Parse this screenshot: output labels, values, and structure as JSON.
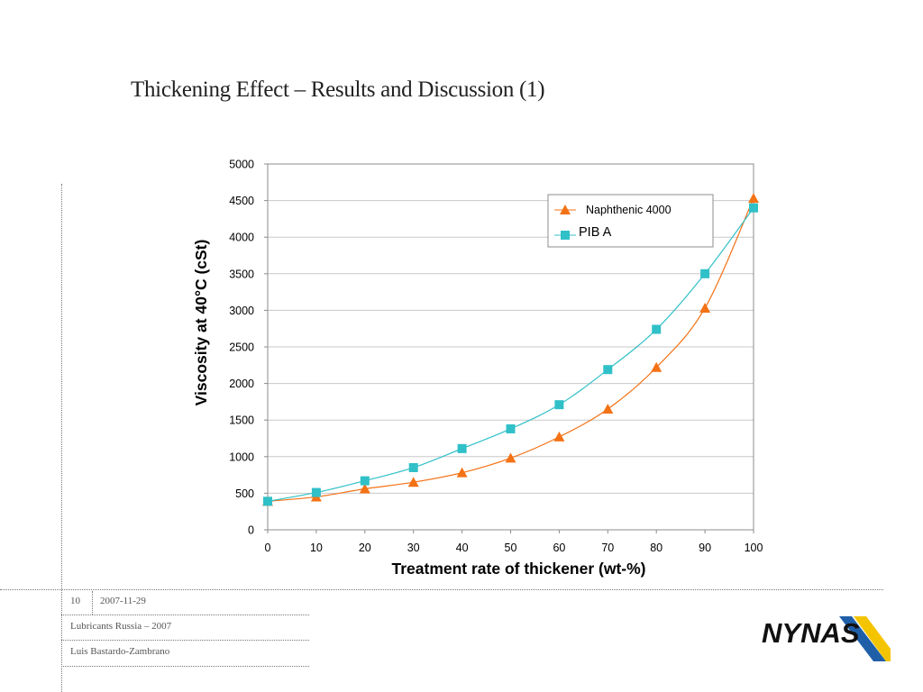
{
  "slide": {
    "title": "Thickening Effect – Results and Discussion (1)"
  },
  "footer": {
    "page_number": "10",
    "date": "2007-11-29",
    "event": "Lubricants Russia – 2007",
    "author": "Luis Bastardo-Zambrano"
  },
  "logo": {
    "text": "NYNAS",
    "colors": {
      "text": "#111111",
      "stripe_blue": "#1f5fa8",
      "stripe_yellow": "#f5c400"
    }
  },
  "chart_data": {
    "type": "line",
    "xlabel": "Treatment rate of thickener (wt-%)",
    "ylabel": "Viscosity at 40°C (cSt)",
    "xlim": [
      0,
      100
    ],
    "ylim": [
      0,
      5000
    ],
    "x_ticks": [
      0,
      10,
      20,
      30,
      40,
      50,
      60,
      70,
      80,
      90,
      100
    ],
    "y_ticks": [
      0,
      500,
      1000,
      1500,
      2000,
      2500,
      3000,
      3500,
      4000,
      4500,
      5000
    ],
    "grid": "horizontal",
    "legend_position": "top-right",
    "x": [
      0,
      10,
      20,
      30,
      40,
      50,
      60,
      70,
      80,
      90,
      100
    ],
    "series": [
      {
        "name": "Naphthenic 4000",
        "marker": "triangle",
        "color": "#f47216",
        "values": [
          390,
          450,
          560,
          650,
          780,
          980,
          1270,
          1650,
          2220,
          3030,
          4530
        ]
      },
      {
        "name": "PIB A",
        "marker": "square",
        "color": "#30c0c8",
        "values": [
          390,
          510,
          670,
          850,
          1110,
          1380,
          1710,
          2190,
          2740,
          3500,
          4400
        ]
      }
    ]
  }
}
